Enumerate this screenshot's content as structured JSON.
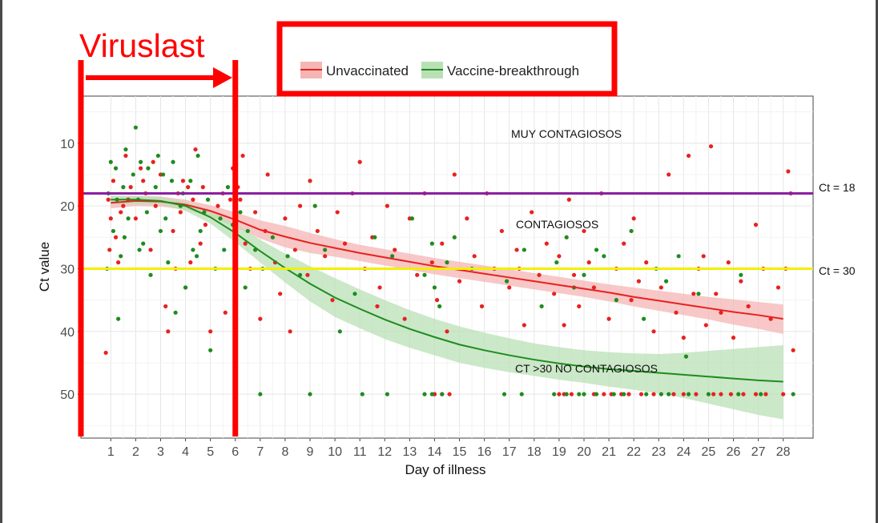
{
  "chart_data": {
    "type": "scatter",
    "title": "",
    "xlabel": "Day of illness",
    "ylabel": "Ct value",
    "x_ticks": [
      1,
      2,
      3,
      4,
      5,
      6,
      7,
      8,
      9,
      10,
      11,
      12,
      13,
      14,
      15,
      16,
      17,
      18,
      19,
      20,
      21,
      22,
      23,
      24,
      25,
      26,
      27,
      28
    ],
    "y_ticks": [
      10,
      20,
      30,
      40,
      50
    ],
    "xlim": [
      -0.2,
      29.2
    ],
    "ylim": [
      57,
      2.5
    ],
    "y_reversed": true,
    "grid": true,
    "legend": {
      "position": "top",
      "entries": [
        {
          "label": "Unvaccinated",
          "color": "#e8211f",
          "band_color": "#f4b6b4"
        },
        {
          "label": "Vaccine-breakthrough",
          "color": "#1e8c1e",
          "band_color": "#b9e0b5"
        }
      ]
    },
    "series": [
      {
        "name": "Unvaccinated",
        "color": "#e8211f",
        "smooth": {
          "x": [
            1,
            2,
            3,
            4,
            5,
            6,
            7,
            8,
            9,
            10,
            11,
            12,
            13,
            14,
            15,
            16,
            17,
            18,
            19,
            20,
            21,
            22,
            23,
            24,
            25,
            26,
            27,
            28
          ],
          "y": [
            19.5,
            19.2,
            19.3,
            19.8,
            20.8,
            22.2,
            23.8,
            24.9,
            25.9,
            26.7,
            27.5,
            28.2,
            28.9,
            29.6,
            30.2,
            30.8,
            31.4,
            32.0,
            32.6,
            33.2,
            33.8,
            34.5,
            35.1,
            35.7,
            36.3,
            36.9,
            37.4,
            38.0
          ],
          "lower": [
            18.8,
            18.4,
            18.5,
            19.0,
            19.9,
            21.0,
            22.3,
            23.2,
            24.3,
            25.3,
            26.2,
            26.9,
            27.6,
            28.3,
            28.9,
            29.5,
            30.1,
            30.7,
            31.3,
            31.9,
            32.5,
            33.0,
            33.5,
            34.0,
            34.5,
            34.9,
            35.3,
            35.7
          ],
          "upper": [
            20.4,
            20.0,
            20.1,
            20.6,
            21.7,
            23.4,
            25.2,
            26.6,
            27.5,
            28.1,
            28.8,
            29.5,
            30.2,
            30.9,
            31.5,
            32.1,
            32.7,
            33.3,
            33.9,
            34.5,
            35.2,
            36.0,
            36.7,
            37.4,
            38.1,
            38.9,
            39.6,
            40.4
          ]
        },
        "points": [
          [
            0.8,
            43.4
          ],
          [
            0.9,
            19
          ],
          [
            1.0,
            22
          ],
          [
            1.1,
            16
          ],
          [
            1.2,
            25
          ],
          [
            1.3,
            29
          ],
          [
            1.5,
            20
          ],
          [
            1.6,
            12
          ],
          [
            1.8,
            17
          ],
          [
            2.0,
            22
          ],
          [
            2.2,
            14
          ],
          [
            2.4,
            18
          ],
          [
            2.6,
            27
          ],
          [
            2.8,
            20
          ],
          [
            3.0,
            15
          ],
          [
            3.2,
            36
          ],
          [
            3.3,
            40
          ],
          [
            3.5,
            24
          ],
          [
            3.6,
            30
          ],
          [
            3.8,
            21
          ],
          [
            4.0,
            33
          ],
          [
            4.1,
            17
          ],
          [
            4.3,
            19
          ],
          [
            4.4,
            11
          ],
          [
            4.6,
            26
          ],
          [
            4.8,
            23
          ],
          [
            5.0,
            40
          ],
          [
            5.3,
            20
          ],
          [
            5.6,
            37
          ],
          [
            5.8,
            19
          ],
          [
            5.9,
            14
          ],
          [
            6.0,
            22
          ],
          [
            6.1,
            17
          ],
          [
            6.3,
            12
          ],
          [
            6.4,
            26
          ],
          [
            6.6,
            30
          ],
          [
            6.8,
            21
          ],
          [
            7.0,
            38
          ],
          [
            7.2,
            24
          ],
          [
            7.3,
            15
          ],
          [
            7.6,
            29
          ],
          [
            7.8,
            34
          ],
          [
            8.0,
            22
          ],
          [
            8.2,
            40
          ],
          [
            8.4,
            27
          ],
          [
            8.6,
            20
          ],
          [
            8.9,
            31
          ],
          [
            9.0,
            16
          ],
          [
            9.3,
            24
          ],
          [
            9.6,
            28
          ],
          [
            9.9,
            35
          ],
          [
            10.1,
            21
          ],
          [
            10.4,
            26
          ],
          [
            10.7,
            18
          ],
          [
            11.0,
            13
          ],
          [
            11.2,
            30
          ],
          [
            11.5,
            25
          ],
          [
            11.8,
            33
          ],
          [
            12.1,
            20
          ],
          [
            12.4,
            27
          ],
          [
            12.8,
            38
          ],
          [
            13.0,
            22
          ],
          [
            13.3,
            31
          ],
          [
            13.6,
            18
          ],
          [
            13.9,
            29
          ],
          [
            14.0,
            50
          ],
          [
            14.1,
            35
          ],
          [
            14.3,
            26
          ],
          [
            14.5,
            40
          ],
          [
            14.8,
            15
          ],
          [
            15.0,
            32
          ],
          [
            15.3,
            22
          ],
          [
            15.6,
            28
          ],
          [
            15.9,
            36
          ],
          [
            16.1,
            18
          ],
          [
            16.4,
            30
          ],
          [
            16.7,
            24
          ],
          [
            17.0,
            33
          ],
          [
            17.3,
            27
          ],
          [
            17.6,
            39
          ],
          [
            17.9,
            21
          ],
          [
            18.2,
            31
          ],
          [
            18.5,
            26
          ],
          [
            18.8,
            34
          ],
          [
            19.0,
            28
          ],
          [
            19.2,
            39
          ],
          [
            19.4,
            19
          ],
          [
            19.6,
            31
          ],
          [
            19.8,
            36
          ],
          [
            20.0,
            24
          ],
          [
            20.2,
            29
          ],
          [
            20.4,
            33
          ],
          [
            20.7,
            18
          ],
          [
            21.0,
            38
          ],
          [
            21.3,
            30
          ],
          [
            21.6,
            26
          ],
          [
            21.9,
            35
          ],
          [
            22.2,
            32
          ],
          [
            22.5,
            29
          ],
          [
            22.8,
            40
          ],
          [
            23.1,
            33
          ],
          [
            23.4,
            15
          ],
          [
            23.7,
            37
          ],
          [
            24.0,
            41
          ],
          [
            24.2,
            12
          ],
          [
            24.4,
            34
          ],
          [
            24.6,
            30
          ],
          [
            24.9,
            39
          ],
          [
            25.1,
            10.5
          ],
          [
            25.3,
            34
          ],
          [
            25.5,
            37
          ],
          [
            25.8,
            29
          ],
          [
            26.0,
            41
          ],
          [
            26.3,
            32
          ],
          [
            26.6,
            36
          ],
          [
            26.9,
            23
          ],
          [
            27.2,
            30
          ],
          [
            27.5,
            38
          ],
          [
            27.8,
            33
          ],
          [
            28.2,
            14.5
          ],
          [
            28.3,
            18
          ],
          [
            28.4,
            43
          ],
          [
            28.1,
            30
          ],
          [
            1.7,
            19
          ],
          [
            2.3,
            16
          ],
          [
            3.7,
            18
          ],
          [
            4.7,
            17
          ],
          [
            5.5,
            18
          ],
          [
            6.2,
            19
          ],
          [
            0.95,
            27
          ],
          [
            1.4,
            21
          ],
          [
            2.7,
            13
          ],
          [
            3.9,
            16
          ],
          [
            4.2,
            29
          ],
          [
            11.7,
            36
          ],
          [
            17.4,
            30
          ],
          [
            22.0,
            22
          ],
          [
            24.8,
            28
          ]
        ],
        "points_at_50": [
          14.0,
          14.3,
          14.6,
          19.0,
          19.2,
          19.5,
          20.4,
          20.8,
          21.1,
          21.5,
          21.8,
          22.3,
          22.8,
          23.6,
          24.0,
          24.5,
          25.2,
          25.5,
          25.9,
          26.4,
          26.9,
          27.3,
          28.0
        ]
      },
      {
        "name": "Vaccine-breakthrough",
        "color": "#1e8c1e",
        "smooth": {
          "x": [
            1,
            2,
            3,
            4,
            5,
            6,
            7,
            8,
            9,
            10,
            11,
            12,
            13,
            14,
            15,
            16,
            17,
            18,
            19,
            20,
            21,
            22,
            23,
            24,
            25,
            26,
            27,
            28
          ],
          "y": [
            19.0,
            19.0,
            19.2,
            20.0,
            21.8,
            24.3,
            27.2,
            29.9,
            32.4,
            34.6,
            36.4,
            38.1,
            39.6,
            40.9,
            42.1,
            43.0,
            43.8,
            44.5,
            45.1,
            45.6,
            46.0,
            46.3,
            46.6,
            46.9,
            47.2,
            47.5,
            47.8,
            48.0
          ],
          "lower": [
            18.3,
            18.4,
            18.6,
            19.3,
            20.8,
            22.9,
            25.4,
            27.6,
            29.6,
            31.5,
            33.3,
            35.0,
            36.6,
            38.0,
            39.2,
            40.2,
            41.1,
            41.9,
            42.5,
            43.0,
            43.3,
            43.5,
            43.6,
            43.4,
            43.1,
            42.8,
            42.5,
            42.2
          ],
          "upper": [
            19.8,
            19.7,
            19.8,
            20.8,
            22.8,
            25.8,
            29.0,
            32.2,
            35.2,
            37.7,
            39.5,
            41.2,
            42.6,
            43.8,
            45.0,
            45.8,
            46.5,
            47.1,
            47.7,
            48.2,
            48.8,
            49.3,
            49.9,
            50.6,
            51.5,
            52.4,
            53.3,
            54.0
          ]
        },
        "points": [
          [
            0.9,
            18
          ],
          [
            1.0,
            13
          ],
          [
            1.1,
            24
          ],
          [
            1.2,
            14
          ],
          [
            1.3,
            38
          ],
          [
            1.4,
            28
          ],
          [
            1.5,
            17
          ],
          [
            1.6,
            11
          ],
          [
            1.7,
            22
          ],
          [
            1.9,
            15
          ],
          [
            2.0,
            7.5
          ],
          [
            2.1,
            19
          ],
          [
            2.2,
            13
          ],
          [
            2.3,
            26
          ],
          [
            2.5,
            14
          ],
          [
            2.6,
            31
          ],
          [
            2.8,
            17
          ],
          [
            2.9,
            12
          ],
          [
            3.0,
            24
          ],
          [
            3.1,
            15
          ],
          [
            3.3,
            29
          ],
          [
            3.5,
            13
          ],
          [
            3.6,
            37
          ],
          [
            3.8,
            20
          ],
          [
            3.9,
            18
          ],
          [
            4.0,
            33
          ],
          [
            4.2,
            16
          ],
          [
            4.3,
            27
          ],
          [
            4.5,
            12
          ],
          [
            4.6,
            24
          ],
          [
            4.9,
            19
          ],
          [
            5.0,
            43
          ],
          [
            5.2,
            30
          ],
          [
            5.4,
            22
          ],
          [
            5.7,
            17
          ],
          [
            5.9,
            23
          ],
          [
            6.0,
            29
          ],
          [
            6.2,
            21
          ],
          [
            6.4,
            33
          ],
          [
            6.5,
            24
          ],
          [
            6.8,
            27
          ],
          [
            7.1,
            30
          ],
          [
            7.5,
            25
          ],
          [
            8.1,
            28
          ],
          [
            8.6,
            31
          ],
          [
            9.2,
            20
          ],
          [
            9.6,
            27
          ],
          [
            10.2,
            40
          ],
          [
            10.8,
            34
          ],
          [
            11.6,
            25
          ],
          [
            12.3,
            28
          ],
          [
            13.1,
            22
          ],
          [
            13.6,
            31
          ],
          [
            13.9,
            26
          ],
          [
            14.0,
            33
          ],
          [
            14.2,
            36
          ],
          [
            14.5,
            29
          ],
          [
            14.8,
            25
          ],
          [
            15.5,
            30
          ],
          [
            16.9,
            32
          ],
          [
            17.6,
            27
          ],
          [
            18.3,
            36
          ],
          [
            18.9,
            29
          ],
          [
            19.3,
            25
          ],
          [
            19.6,
            33
          ],
          [
            20.0,
            31
          ],
          [
            20.5,
            27
          ],
          [
            20.8,
            28
          ],
          [
            21.3,
            35
          ],
          [
            21.9,
            24
          ],
          [
            22.4,
            38
          ],
          [
            22.9,
            30
          ],
          [
            23.3,
            32
          ],
          [
            23.8,
            28
          ],
          [
            24.1,
            44
          ],
          [
            24.6,
            34
          ],
          [
            26.3,
            31
          ],
          [
            0.85,
            30
          ],
          [
            1.25,
            19
          ],
          [
            2.45,
            21
          ],
          [
            3.2,
            22
          ],
          [
            4.45,
            28
          ],
          [
            5.55,
            27
          ],
          [
            2.15,
            27
          ],
          [
            1.55,
            25
          ],
          [
            3.45,
            16
          ],
          [
            4.75,
            21
          ]
        ],
        "points_at_50": [
          7.0,
          9.0,
          11.1,
          12.1,
          13.6,
          13.9,
          14.3,
          16.8,
          17.5,
          18.8,
          19.3,
          19.8,
          20.0,
          20.5,
          21.2,
          21.6,
          22.5,
          23.1,
          23.4,
          24.2,
          25.0,
          26.2,
          27.1,
          28.4
        ]
      }
    ],
    "annotations": {
      "viruslast": "Viruslast",
      "muy": "MUY CONTAGIOSOS",
      "contagiosos": "CONTAGIOSOS",
      "no_contagiosos": "CT >30 NO CONTAGIOSOS",
      "ct18": "Ct = 18",
      "ct30": "Ct = 30"
    },
    "reference_lines": [
      {
        "y": 18,
        "color": "#8b1fa0",
        "label": "Ct = 18"
      },
      {
        "y": 30,
        "color": "#f2ef00",
        "label": "Ct = 30"
      }
    ],
    "vertical_markers": [
      {
        "x": -0.2,
        "color": "#ff0000"
      },
      {
        "x": 6.0,
        "color": "#ff0000"
      }
    ]
  }
}
